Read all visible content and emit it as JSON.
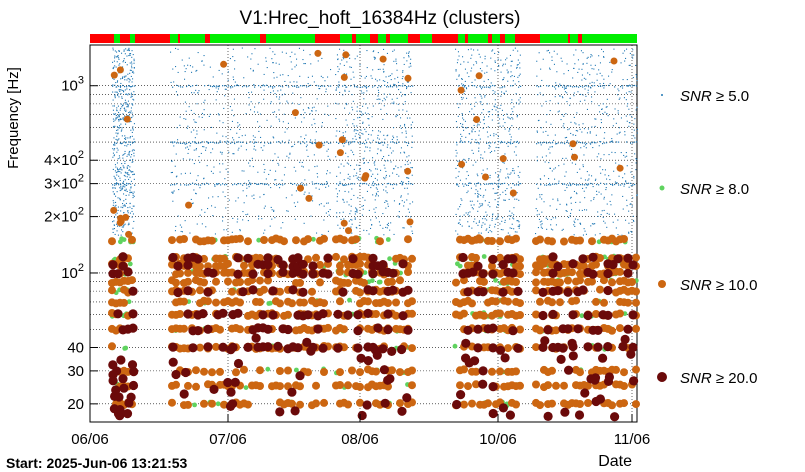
{
  "chart_data": {
    "type": "scatter",
    "title": "V1:Hrec_hoft_16384Hz (clusters)",
    "xlabel": "Date",
    "ylabel": "Frequency [Hz]",
    "start_label": "Start: 2025-Jun-06 13:21:53",
    "x_ticks": [
      "06/06",
      "07/06",
      "08/06",
      "10/06",
      "11/06"
    ],
    "y_scale": "log",
    "ylim": [
      16,
      1650
    ],
    "y_ticks": [
      {
        "value": 20,
        "label": "20"
      },
      {
        "value": 30,
        "label": "30"
      },
      {
        "value": 40,
        "label": "40"
      },
      {
        "value": 100,
        "label": "10^2"
      },
      {
        "value": 200,
        "label": "2×10^2"
      },
      {
        "value": 300,
        "label": "3×10^2"
      },
      {
        "value": 400,
        "label": "4×10^2"
      },
      {
        "value": 1000,
        "label": "10^3"
      }
    ],
    "grid": true,
    "legend": [
      {
        "label": "SNR ≥ 5.0",
        "color": "#1f77b4"
      },
      {
        "label": "SNR ≥ 8.0",
        "color": "#5fd35f"
      },
      {
        "label": "SNR ≥ 10.0",
        "color": "#cc6611"
      },
      {
        "label": "SNR ≥ 20.0",
        "color": "#6b0a0a"
      }
    ],
    "legend_placement": "right",
    "segments_bar": {
      "on_color": "#00ee00",
      "off_color": "#ff0000"
    },
    "frequency_bands_hz": [
      20,
      25,
      30,
      40,
      50,
      60,
      70,
      80,
      90,
      100,
      110,
      120,
      150,
      200,
      300,
      500,
      1000
    ],
    "active_intervals": [
      {
        "from": "06/06",
        "to": "06/06 +0.9"
      },
      {
        "from": "06/06 +2.6",
        "to": "07/06 +3.2"
      },
      {
        "from": "08/06 -0.5",
        "to": "08/06 +1.0"
      },
      {
        "from": "10/06 -1.2",
        "to": "10/06 +1.2"
      },
      {
        "from": "11/06 -2.2",
        "to": "11/06"
      }
    ]
  }
}
